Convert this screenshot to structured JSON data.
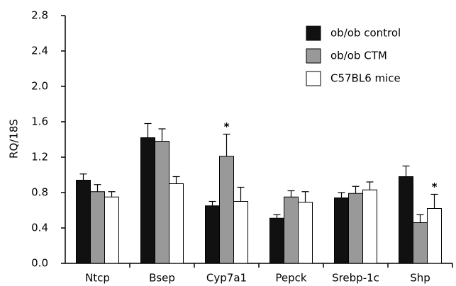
{
  "chart_data": {
    "type": "bar",
    "y_label": "RQ/18S",
    "categories": [
      "Ntcp",
      "Bsep",
      "Cyp7a1",
      "Pepck",
      "Srebp-1c",
      "Shp"
    ],
    "series": [
      {
        "name": "ob/ob control",
        "color": "#111111",
        "values": [
          0.94,
          1.42,
          0.65,
          0.51,
          0.74,
          0.98
        ],
        "errors": [
          0.07,
          0.16,
          0.05,
          0.04,
          0.06,
          0.12
        ]
      },
      {
        "name": "ob/ob CTM",
        "color": "#999999",
        "values": [
          0.81,
          1.38,
          1.21,
          0.75,
          0.79,
          0.46
        ],
        "errors": [
          0.08,
          0.14,
          0.25,
          0.07,
          0.08,
          0.09
        ]
      },
      {
        "name": "C57BL6 mice",
        "color": "#ffffff",
        "values": [
          0.75,
          0.9,
          0.7,
          0.69,
          0.83,
          0.62
        ],
        "errors": [
          0.06,
          0.08,
          0.16,
          0.12,
          0.09,
          0.16
        ]
      }
    ],
    "annotations": [
      {
        "text": "*",
        "category": 2,
        "series": 1
      },
      {
        "text": "*",
        "category": 5,
        "series": 2
      }
    ],
    "ylim": [
      0,
      2.8
    ],
    "yticks": [
      {
        "value": 0,
        "label": "0.0"
      },
      0.4,
      0.8,
      1.2,
      1.6,
      {
        "value": 2,
        "label": "2.0"
      },
      2.4,
      2.8
    ],
    "legend": "upper right"
  }
}
